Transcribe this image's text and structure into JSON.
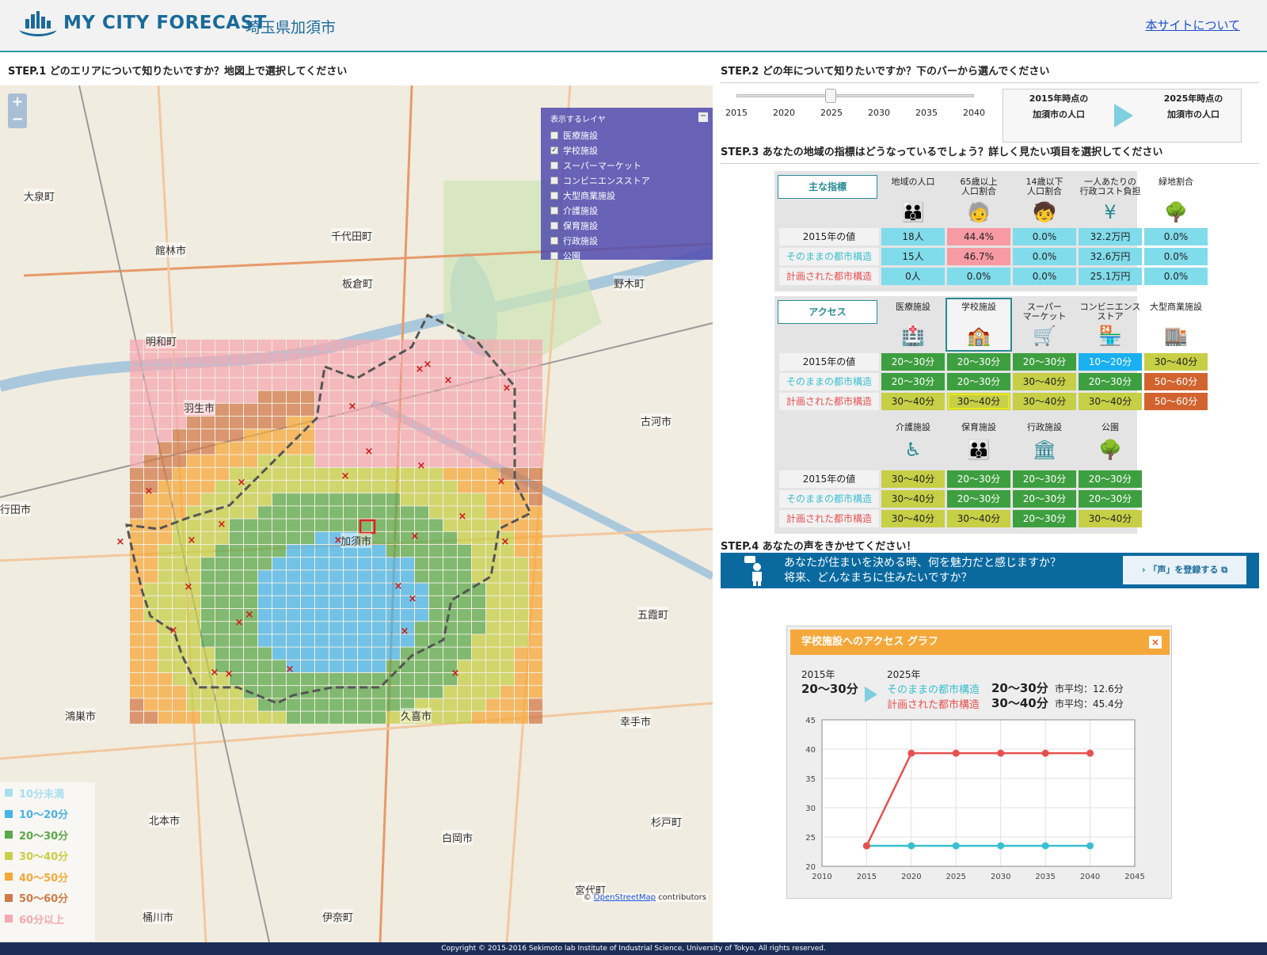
{
  "header": {
    "logo_text": "MY CITY FORECAST",
    "city": "埼玉県加須市",
    "about_link": "本サイトについて"
  },
  "steps": {
    "step1": "STEP.1  どのエリアについて知りたいですか？地図上で選択してください",
    "step2": "STEP.2  どの年について知りたいですか？下のバーから選んでください",
    "step3": "STEP.3  あなたの地域の指標はどうなっているでしょう？詳しく見たい項目を選択してください",
    "step4": "STEP.4  あなたの声をきかせてください！"
  },
  "map": {
    "zoom_in": "+",
    "zoom_out": "−",
    "layer_title": "表示するレイヤ",
    "layers": [
      {
        "label": "医療施設",
        "checked": false
      },
      {
        "label": "学校施設",
        "checked": true
      },
      {
        "label": "スーパーマーケット",
        "checked": false
      },
      {
        "label": "コンビニエンスストア",
        "checked": false
      },
      {
        "label": "大型商業施設",
        "checked": false
      },
      {
        "label": "介護施設",
        "checked": false
      },
      {
        "label": "保育施設",
        "checked": false
      },
      {
        "label": "行政施設",
        "checked": false
      },
      {
        "label": "公園",
        "checked": false
      }
    ],
    "towns": [
      "館林市",
      "板倉町",
      "野木町",
      "明和町",
      "羽生市",
      "古河市",
      "加須市",
      "行田市",
      "五霞町",
      "鴻巣市",
      "久喜市",
      "幸手市",
      "北本市",
      "白岡市",
      "杉戸町",
      "桶川市",
      "伊奈町",
      "宮代町",
      "千代田町",
      "大泉町"
    ],
    "legend": [
      {
        "label": "10分未満",
        "color": "#a8dff0"
      },
      {
        "label": "10〜20分",
        "color": "#45b4e8"
      },
      {
        "label": "20〜30分",
        "color": "#5aa84a"
      },
      {
        "label": "30〜40分",
        "color": "#c6cf45"
      },
      {
        "label": "40〜50分",
        "color": "#f5a83a"
      },
      {
        "label": "50〜60分",
        "color": "#d07a4a"
      },
      {
        "label": "60分以上",
        "color": "#f4a8b0"
      }
    ],
    "attribution_symbol": "©",
    "attribution_link": "OpenStreetMap",
    "attribution_rest": "contributors"
  },
  "slider": {
    "years": [
      "2015",
      "2020",
      "2025",
      "2030",
      "2035",
      "2040"
    ],
    "selected": "2025"
  },
  "population_box": {
    "left_line1": "2015年時点の",
    "left_line2": "加須市の人口",
    "right_line1": "2025年時点の",
    "right_line2": "加須市の人口"
  },
  "indicators": {
    "category": "主な指標",
    "columns": [
      "地域の人口",
      "65歳以上\n人口割合",
      "14歳以下\n人口割合",
      "一人あたりの\n行政コスト負担",
      "緑地割合"
    ],
    "row_labels": [
      "2015年の値",
      "そのままの都市構造",
      "計画された都市構造"
    ],
    "rows": [
      [
        "18人",
        "44.4%",
        "0.0%",
        "32.2万円",
        "0.0%"
      ],
      [
        "15人",
        "46.7%",
        "0.0%",
        "32.6万円",
        "0.0%"
      ],
      [
        "0人",
        "0.0%",
        "0.0%",
        "25.1万円",
        "0.0%"
      ]
    ]
  },
  "access": {
    "category": "アクセス",
    "columns1": [
      "医療施設",
      "学校施設",
      "スーパー\nマーケット",
      "コンビニエンス\nストア",
      "大型商業施設"
    ],
    "rows1": [
      [
        "20〜30分",
        "20〜30分",
        "20〜30分",
        "10〜20分",
        "30〜40分"
      ],
      [
        "20〜30分",
        "20〜30分",
        "30〜40分",
        "20〜30分",
        "50〜60分"
      ],
      [
        "30〜40分",
        "30〜40分",
        "30〜40分",
        "30〜40分",
        "50〜60分"
      ]
    ],
    "columns2": [
      "介護施設",
      "保育施設",
      "行政施設",
      "公園"
    ],
    "rows2": [
      [
        "30〜40分",
        "20〜30分",
        "20〜30分",
        "20〜30分"
      ],
      [
        "30〜40分",
        "20〜30分",
        "20〜30分",
        "20〜30分"
      ],
      [
        "30〜40分",
        "30〜40分",
        "20〜30分",
        "30〜40分"
      ]
    ]
  },
  "voice": {
    "line1": "あなたが住まいを決める時、何を魅力だと感じますか？",
    "line2": "将来、どんなまちに住みたいですか？",
    "button": "「声」を登録する"
  },
  "graph": {
    "title": "学校施設へのアクセス グラフ",
    "close": "×",
    "year_from": "2015年",
    "value_from": "20〜30分",
    "year_to": "2025年",
    "scenario1": "そのままの都市構造",
    "scenario1_value": "20〜30分",
    "scenario1_avg": "市平均：12.6分",
    "scenario2": "計画された都市構造",
    "scenario2_value": "30〜40分",
    "scenario2_avg": "市平均：45.4分"
  },
  "chart_data": {
    "type": "line",
    "x": [
      2015,
      2020,
      2025,
      2030,
      2035,
      2040
    ],
    "xlim": [
      2010,
      2045
    ],
    "xticks": [
      2010,
      2015,
      2020,
      2025,
      2030,
      2035,
      2040,
      2045
    ],
    "ylim": [
      20,
      45
    ],
    "yticks": [
      20,
      25,
      30,
      35,
      40,
      45
    ],
    "series": [
      {
        "color": "#3bbfd0",
        "values": [
          23.5,
          23.5,
          23.5,
          23.5,
          23.5,
          23.5
        ]
      },
      {
        "color": "#e85050",
        "values": [
          23.5,
          39.3,
          39.3,
          39.3,
          39.3,
          39.3
        ]
      }
    ],
    "grid": true
  },
  "footer": "Copyright © 2015-2016 Sekimoto lab Institute of Industrial Science, University of Tokyo, All rights reserved."
}
